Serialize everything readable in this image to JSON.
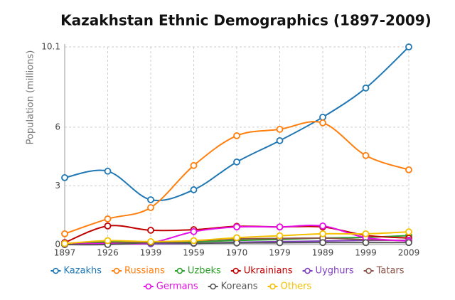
{
  "chart_data": {
    "type": "line",
    "title": "Kazakhstan Ethnic Demographics (1897-2009)",
    "y_label": "Population (millions)",
    "categories": [
      "1897",
      "1926",
      "1939",
      "1959",
      "1970",
      "1979",
      "1989",
      "1999",
      "2009"
    ],
    "ylim": [
      0,
      10.1
    ],
    "yticks": [
      0,
      3,
      6,
      10.1
    ],
    "grid": true,
    "series": [
      {
        "name": "Kazakhs",
        "color": "#1f77b4",
        "values": [
          3.42,
          3.75,
          2.29,
          2.8,
          4.22,
          5.31,
          6.51,
          8.0,
          10.1
        ]
      },
      {
        "name": "Russians",
        "color": "#ff7f0e",
        "values": [
          0.55,
          1.31,
          1.89,
          4.04,
          5.56,
          5.89,
          6.22,
          4.55,
          3.82
        ]
      },
      {
        "name": "Uzbeks",
        "color": "#2ca02c",
        "values": [
          0.03,
          0.13,
          0.1,
          0.14,
          0.21,
          0.26,
          0.33,
          0.37,
          0.46
        ]
      },
      {
        "name": "Ukrainians",
        "color": "#c00000",
        "values": [
          0.1,
          0.95,
          0.73,
          0.76,
          0.93,
          0.9,
          0.9,
          0.47,
          0.33
        ]
      },
      {
        "name": "Uyghurs",
        "color": "#7f3fbf",
        "values": [
          0.06,
          0.06,
          0.04,
          0.06,
          0.12,
          0.15,
          0.18,
          0.21,
          0.22
        ]
      },
      {
        "name": "Tatars",
        "color": "#8c564b",
        "values": [
          0.01,
          0.08,
          0.11,
          0.19,
          0.29,
          0.31,
          0.33,
          0.25,
          0.2
        ]
      },
      {
        "name": "Germans",
        "color": "#e60ee6",
        "values": [
          0.0,
          0.05,
          0.09,
          0.66,
          0.9,
          0.9,
          0.95,
          0.35,
          0.18
        ]
      },
      {
        "name": "Koreans",
        "color": "#555555",
        "values": [
          0.0,
          0.0,
          0.1,
          0.07,
          0.08,
          0.09,
          0.1,
          0.1,
          0.1
        ]
      },
      {
        "name": "Others",
        "color": "#f5c000",
        "values": [
          0.05,
          0.2,
          0.15,
          0.2,
          0.35,
          0.45,
          0.55,
          0.55,
          0.65
        ]
      }
    ]
  }
}
